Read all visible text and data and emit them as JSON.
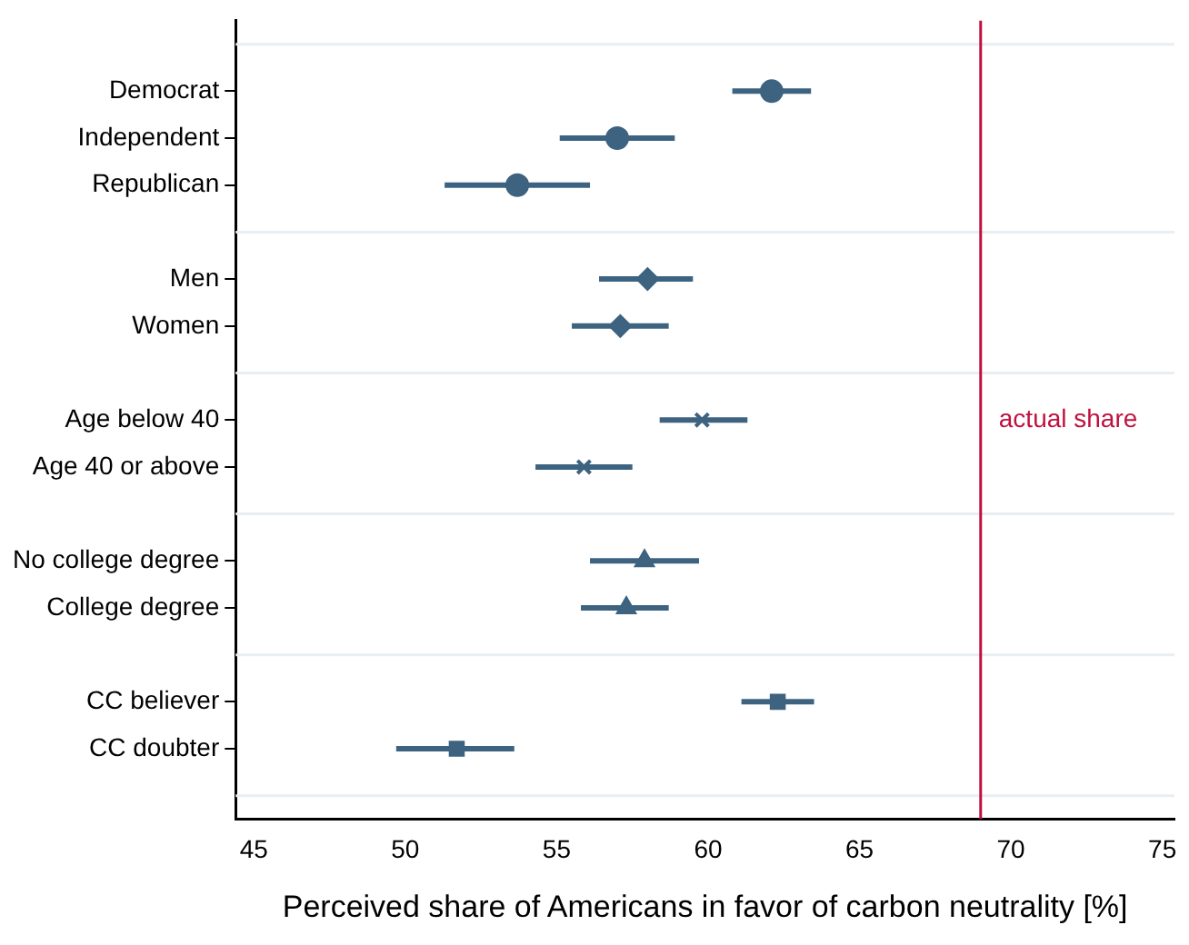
{
  "chart_data": {
    "type": "scatter",
    "orientation": "horizontal",
    "xlabel": "Perceived share of Americans in favor of carbon neutrality [%]",
    "categories": [
      "Democrat",
      "Independent",
      "Republican",
      null,
      "Men",
      "Women",
      null,
      "Age below 40",
      "Age 40 or above",
      null,
      "No college degree",
      "College degree",
      null,
      "CC believer",
      "CC doubter"
    ],
    "series": [
      {
        "color": "#3d6380",
        "marker": "circle",
        "values": [
          62.1,
          57.0,
          53.7,
          null,
          null,
          null,
          null,
          null,
          null,
          null,
          null,
          null,
          null,
          null,
          null
        ],
        "errors": [
          [
            60.8,
            63.4
          ],
          [
            55.1,
            58.9
          ],
          [
            51.3,
            56.1
          ],
          null,
          null,
          null,
          null,
          null,
          null,
          null,
          null,
          null,
          null,
          null,
          null
        ]
      },
      {
        "color": "#3d6380",
        "marker": "diamond",
        "values": [
          null,
          null,
          null,
          null,
          58.0,
          57.1,
          null,
          null,
          null,
          null,
          null,
          null,
          null,
          null,
          null
        ],
        "errors": [
          null,
          null,
          null,
          null,
          [
            56.4,
            59.5
          ],
          [
            55.5,
            58.7
          ],
          null,
          null,
          null,
          null,
          null,
          null,
          null,
          null,
          null
        ]
      },
      {
        "color": "#3d6380",
        "marker": "cross",
        "values": [
          null,
          null,
          null,
          null,
          null,
          null,
          null,
          59.8,
          55.9,
          null,
          null,
          null,
          null,
          null,
          null
        ],
        "errors": [
          null,
          null,
          null,
          null,
          null,
          null,
          null,
          [
            58.4,
            61.3
          ],
          [
            54.3,
            57.5
          ],
          null,
          null,
          null,
          null,
          null,
          null
        ]
      },
      {
        "color": "#3d6380",
        "marker": "triangle",
        "values": [
          null,
          null,
          null,
          null,
          null,
          null,
          null,
          null,
          null,
          null,
          57.9,
          57.3,
          null,
          null,
          null
        ],
        "errors": [
          null,
          null,
          null,
          null,
          null,
          null,
          null,
          null,
          null,
          null,
          [
            56.1,
            59.7
          ],
          [
            55.8,
            58.7
          ],
          null,
          null,
          null
        ]
      },
      {
        "color": "#3d6380",
        "marker": "square",
        "values": [
          null,
          null,
          null,
          null,
          null,
          null,
          null,
          null,
          null,
          null,
          null,
          null,
          null,
          62.3,
          51.7
        ],
        "errors": [
          null,
          null,
          null,
          null,
          null,
          null,
          null,
          null,
          null,
          null,
          null,
          null,
          null,
          [
            61.1,
            63.5
          ],
          [
            49.7,
            53.6
          ]
        ]
      }
    ],
    "xlim": [
      44.4,
      75.4
    ],
    "xticks": [
      45,
      50,
      55,
      60,
      65,
      70,
      75
    ],
    "ref_lines": [
      {
        "axis": "x",
        "value": 69,
        "label": "actual share",
        "color": "#c0103f"
      }
    ],
    "grid": "y",
    "legend": false
  }
}
